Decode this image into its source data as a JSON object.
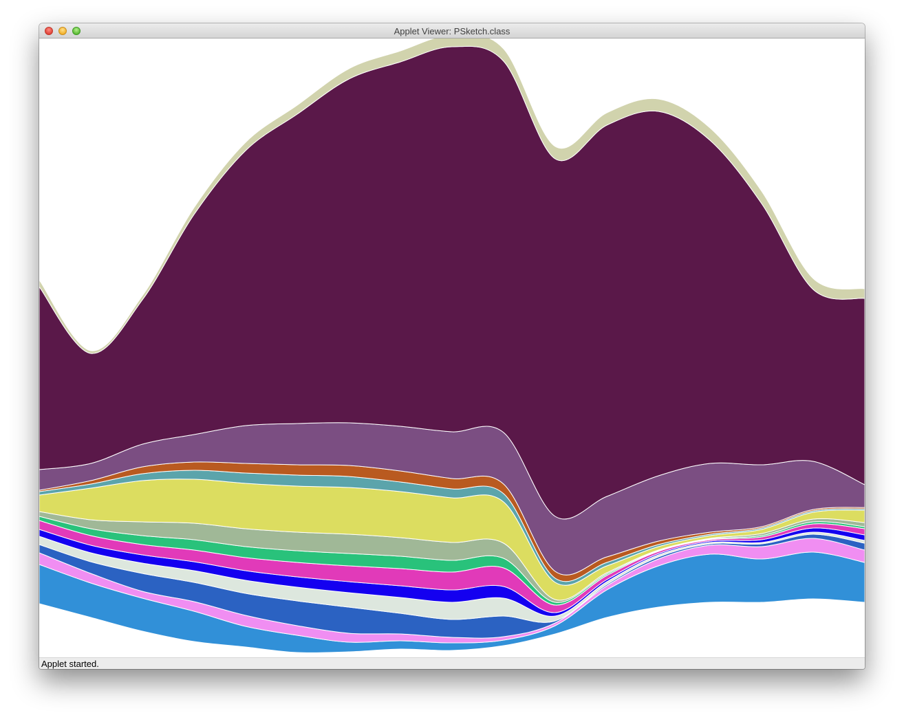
{
  "window": {
    "title": "Applet Viewer: PSketch.class",
    "buttons": [
      "close",
      "minimize",
      "zoom"
    ]
  },
  "status": {
    "text": "Applet started."
  },
  "chart_data": {
    "type": "area",
    "x": [
      0,
      1,
      2,
      3,
      4,
      5,
      6,
      7,
      8,
      9,
      10,
      11,
      12,
      13,
      14,
      15,
      16
    ],
    "series": [
      {
        "color": "#3190d8",
        "values": [
          57,
          50,
          48,
          44,
          30,
          25,
          14,
          12,
          11,
          8,
          12,
          40,
          60,
          70,
          63,
          68,
          58
        ]
      },
      {
        "color": "#f08ef2",
        "values": [
          17,
          14,
          10,
          14,
          16,
          14,
          13,
          10,
          8,
          5,
          4,
          6,
          10,
          13,
          18,
          20,
          18
        ]
      },
      {
        "color": "#2b62c2",
        "values": [
          12,
          17,
          26,
          28,
          32,
          36,
          38,
          30,
          26,
          30,
          3,
          2,
          3,
          2,
          4,
          6,
          10
        ]
      },
      {
        "color": "#dde7de",
        "values": [
          12,
          13,
          15,
          17,
          19,
          20,
          21,
          23,
          25,
          26,
          7,
          4,
          3,
          2,
          2,
          3,
          4
        ]
      },
      {
        "color": "#1400f0",
        "values": [
          10,
          11,
          12,
          13,
          14,
          15,
          16,
          17,
          18,
          17,
          5,
          3,
          2,
          2,
          4,
          6,
          8
        ]
      },
      {
        "color": "#e13ab9",
        "values": [
          13,
          14,
          15,
          17,
          19,
          21,
          23,
          25,
          26,
          27,
          11,
          6,
          3,
          2,
          4,
          6,
          9
        ]
      },
      {
        "color": "#29c27b",
        "values": [
          6,
          10,
          13,
          15,
          16,
          17,
          18,
          18,
          17,
          14,
          4,
          2,
          1,
          1,
          2,
          3,
          3
        ]
      },
      {
        "color": "#a0b897",
        "values": [
          7,
          13,
          20,
          24,
          26,
          27,
          28,
          27,
          26,
          22,
          4,
          2,
          1,
          1,
          3,
          4,
          6
        ]
      },
      {
        "color": "#dcdd60",
        "values": [
          24,
          46,
          60,
          64,
          66,
          67,
          68,
          67,
          65,
          60,
          25,
          10,
          5,
          4,
          6,
          10,
          18
        ]
      },
      {
        "color": "#5ba4ab",
        "values": [
          5,
          6,
          10,
          13,
          15,
          16,
          16,
          14,
          13,
          12,
          6,
          5,
          3,
          2,
          2,
          2,
          2
        ]
      },
      {
        "color": "#b95a20",
        "values": [
          2,
          5,
          10,
          12,
          14,
          15,
          16,
          16,
          15,
          14,
          10,
          8,
          5,
          3,
          2,
          2,
          2
        ]
      },
      {
        "color": "#7b4e82",
        "values": [
          30,
          25,
          33,
          40,
          55,
          60,
          62,
          65,
          68,
          75,
          80,
          88,
          95,
          100,
          90,
          70,
          33
        ]
      },
      {
        "color": "#5a1849",
        "values": [
          266,
          160,
          210,
          320,
          400,
          450,
          500,
          530,
          560,
          540,
          520,
          540,
          530,
          470,
          380,
          250,
          271
        ]
      },
      {
        "color": "#d1d3ad",
        "values": [
          10,
          4,
          6,
          10,
          12,
          13,
          15,
          16,
          17,
          18,
          18,
          18,
          18,
          18,
          18,
          16,
          14
        ]
      }
    ],
    "xlabel": "",
    "ylabel": "",
    "grid": false,
    "legend": "none"
  }
}
